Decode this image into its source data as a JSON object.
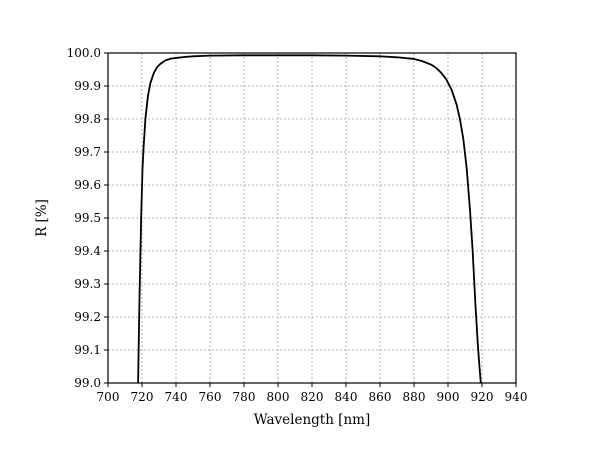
{
  "chart_data": {
    "type": "line",
    "title": "",
    "xlabel": "Wavelength [nm]",
    "ylabel": "R [%]",
    "xlim": [
      700,
      940
    ],
    "ylim": [
      99.0,
      100.0
    ],
    "x_ticks": [
      700,
      720,
      740,
      760,
      780,
      800,
      820,
      840,
      860,
      880,
      900,
      920,
      940
    ],
    "x_tick_labels": [
      "700",
      "720",
      "740",
      "760",
      "780",
      "800",
      "820",
      "840",
      "860",
      "880",
      "900",
      "920",
      "940"
    ],
    "y_ticks": [
      99.0,
      99.1,
      99.2,
      99.3,
      99.4,
      99.5,
      99.6,
      99.7,
      99.8,
      99.9,
      100.0
    ],
    "y_tick_labels": [
      "99.0",
      "99.1",
      "99.2",
      "99.3",
      "99.4",
      "99.5",
      "99.6",
      "99.7",
      "99.8",
      "99.9",
      "100.0"
    ],
    "grid": true,
    "legend": "none",
    "series": [
      {
        "color": "#000000",
        "x": [
          717.7,
          718.5,
          719.5,
          720.3,
          721.0,
          722.0,
          723.5,
          725.0,
          727.0,
          729.0,
          731.0,
          734.0,
          737.0,
          740.0,
          745.0,
          750.0,
          760.0,
          780.0,
          800.0,
          820.0,
          840.0,
          860.0,
          870.0,
          880.0,
          885.0,
          890.0,
          893.0,
          896.0,
          899.0,
          902.0,
          905.0,
          907.0,
          909.0,
          911.0,
          913.0,
          914.5,
          916.0,
          917.5,
          918.5,
          919.3
        ],
        "values": [
          99.0,
          99.25,
          99.5,
          99.65,
          99.72,
          99.8,
          99.87,
          99.91,
          99.94,
          99.958,
          99.968,
          99.978,
          99.983,
          99.985,
          99.988,
          99.99,
          99.992,
          99.993,
          99.993,
          99.993,
          99.992,
          99.99,
          99.987,
          99.982,
          99.975,
          99.965,
          99.955,
          99.94,
          99.92,
          99.89,
          99.845,
          99.8,
          99.74,
          99.65,
          99.52,
          99.4,
          99.25,
          99.12,
          99.05,
          99.0
        ]
      }
    ]
  }
}
